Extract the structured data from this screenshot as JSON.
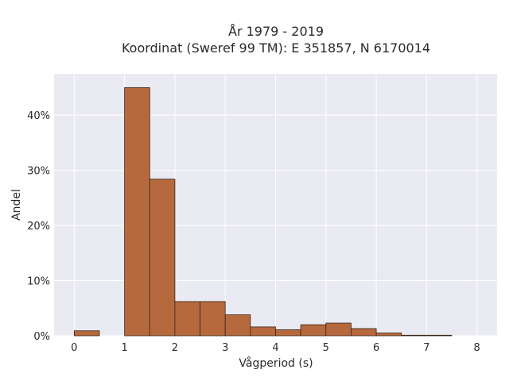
{
  "chart_data": {
    "type": "bar",
    "title_line1": "År 1979 - 2019",
    "title_line2": "Koordinat (Sweref 99 TM): E 351857, N 6170014",
    "xlabel": "Vågperiod (s)",
    "ylabel": "Andel",
    "xlim": [
      -0.4,
      8.4
    ],
    "ylim": [
      0,
      47.5
    ],
    "x_ticks": [
      0,
      1,
      2,
      3,
      4,
      5,
      6,
      7,
      8
    ],
    "x_tick_labels": [
      "0",
      "1",
      "2",
      "3",
      "4",
      "5",
      "6",
      "7",
      "8"
    ],
    "y_ticks": [
      0,
      10,
      20,
      30,
      40
    ],
    "y_tick_labels": [
      "0%",
      "10%",
      "20%",
      "30%",
      "40%"
    ],
    "bin_width": 0.5,
    "bins": [
      {
        "start": 0.0,
        "value": 0.9
      },
      {
        "start": 0.5,
        "value": 0.0
      },
      {
        "start": 1.0,
        "value": 45.0
      },
      {
        "start": 1.5,
        "value": 28.4
      },
      {
        "start": 2.0,
        "value": 6.2
      },
      {
        "start": 2.5,
        "value": 6.2
      },
      {
        "start": 3.0,
        "value": 3.8
      },
      {
        "start": 3.5,
        "value": 1.6
      },
      {
        "start": 4.0,
        "value": 1.1
      },
      {
        "start": 4.5,
        "value": 2.0
      },
      {
        "start": 5.0,
        "value": 2.3
      },
      {
        "start": 5.5,
        "value": 1.3
      },
      {
        "start": 6.0,
        "value": 0.5
      },
      {
        "start": 6.5,
        "value": 0.1
      },
      {
        "start": 7.0,
        "value": 0.1
      }
    ],
    "grid": true,
    "colors": {
      "bar_fill": "#b5693d",
      "bar_stroke": "#3a2416",
      "plot_bg": "#eaeaf2",
      "grid": "#ffffff"
    }
  }
}
